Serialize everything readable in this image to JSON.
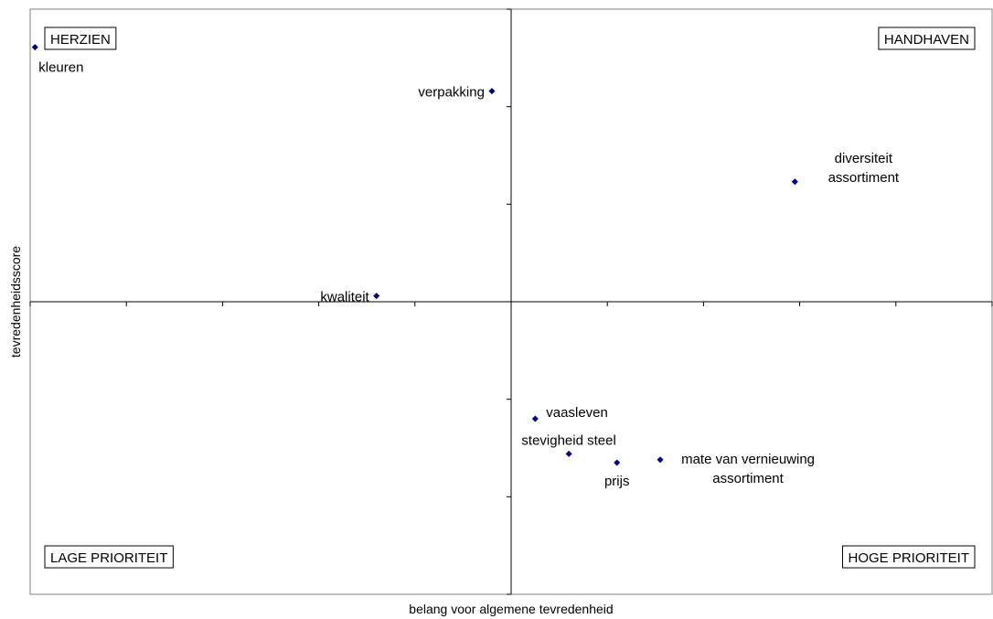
{
  "chart_data": {
    "type": "scatter",
    "xlabel": "belang voor algemene tevredenheid",
    "ylabel": "tevredenheidsscore",
    "xlim": [
      -1,
      1
    ],
    "ylim": [
      -1,
      1
    ],
    "grid": false,
    "quadrants": {
      "top_left": "HERZIEN",
      "top_right": "HANDHAVEN",
      "bottom_left": "LAGE PRIORITEIT",
      "bottom_right": "HOGE PRIORITEIT"
    },
    "points": [
      {
        "lines": [
          "kleuren"
        ],
        "x": -0.99,
        "y": 0.87,
        "label_pos": "below-right"
      },
      {
        "lines": [
          "verpakking"
        ],
        "x": -0.04,
        "y": 0.72,
        "label_pos": "left"
      },
      {
        "lines": [
          "diversiteit",
          "assortiment"
        ],
        "x": 0.59,
        "y": 0.41,
        "label_pos": "right-stacked"
      },
      {
        "lines": [
          "kwaliteit"
        ],
        "x": -0.28,
        "y": 0.02,
        "label_pos": "left"
      },
      {
        "lines": [
          "vaasleven"
        ],
        "x": 0.05,
        "y": -0.4,
        "label_pos": "right"
      },
      {
        "lines": [
          "stevigheid steel"
        ],
        "x": 0.12,
        "y": -0.52,
        "label_pos": "above"
      },
      {
        "lines": [
          "prijs"
        ],
        "x": 0.22,
        "y": -0.55,
        "label_pos": "below"
      },
      {
        "lines": [
          "mate van vernieuwing",
          "assortiment"
        ],
        "x": 0.31,
        "y": -0.54,
        "label_pos": "right-stacked-below"
      }
    ]
  }
}
